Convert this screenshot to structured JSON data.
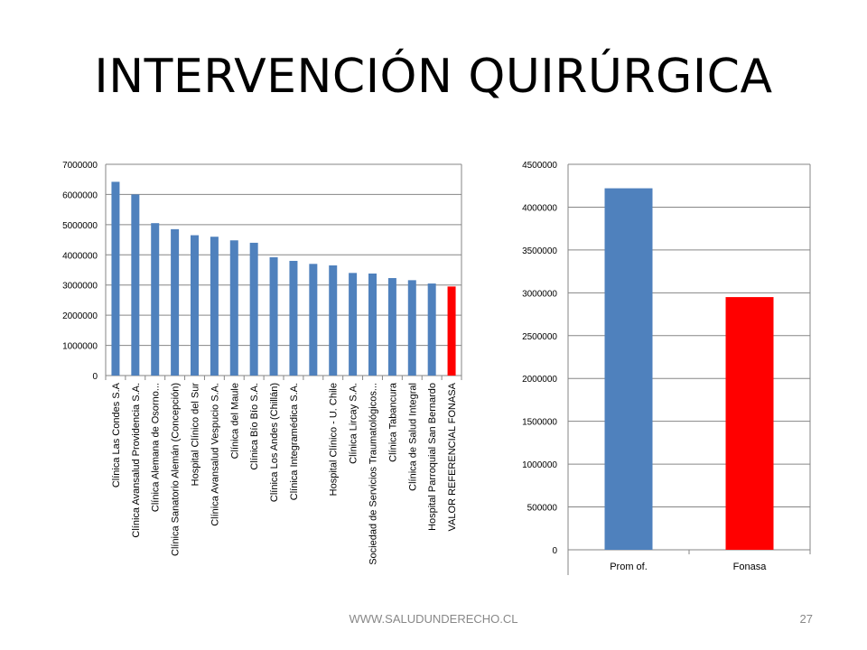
{
  "slide": {
    "title": "INTERVENCIÓN QUIRÚRGICA",
    "footer": "WWW.SALUDUNDERECHO.CL",
    "page_number": "27"
  },
  "chart_data": [
    {
      "type": "bar",
      "categories": [
        "Clínica Las Condes S.A",
        "Clínica Avansalud Providencia S.A.",
        "Clínica Alemana de Osorno...",
        "Clínica Sanatorio Alemán (Concepción)",
        "Hospital Clínico del Sur",
        "Clínica Avansalud Vespucio S.A.",
        "Clínica del Maule",
        "Clínica Bío Bío S.A.",
        "Clínica Los Andes (Chillán)",
        "Clínica Integramédica S.A.",
        "",
        "Hospital Clínico - U. Chile",
        "Clínica Lircay S.A.",
        "Sociedad de Servicios Traumatológicos...",
        "Clínica Tabancura",
        "Clínica de Salud Integral",
        "Hospital Parroquial San Bernardo",
        "VALOR REFERENCIAL FONASA"
      ],
      "values": [
        6420000,
        6000000,
        5050000,
        4850000,
        4650000,
        4600000,
        4480000,
        4400000,
        3920000,
        3800000,
        3700000,
        3650000,
        3400000,
        3380000,
        3230000,
        3160000,
        3050000,
        2950000
      ],
      "colors": [
        "#4f81bd",
        "#4f81bd",
        "#4f81bd",
        "#4f81bd",
        "#4f81bd",
        "#4f81bd",
        "#4f81bd",
        "#4f81bd",
        "#4f81bd",
        "#4f81bd",
        "#4f81bd",
        "#4f81bd",
        "#4f81bd",
        "#4f81bd",
        "#4f81bd",
        "#4f81bd",
        "#4f81bd",
        "#ff0000"
      ],
      "ylim": [
        0,
        7000000
      ],
      "yticks": [
        "0",
        "1000000",
        "2000000",
        "3000000",
        "4000000",
        "5000000",
        "6000000",
        "7000000"
      ],
      "grid": true
    },
    {
      "type": "bar",
      "categories": [
        "Prom of.",
        "Fonasa"
      ],
      "values": [
        4220000,
        2950000
      ],
      "colors": [
        "#4f81bd",
        "#ff0000"
      ],
      "ylim": [
        0,
        4500000
      ],
      "yticks": [
        "0",
        "500000",
        "1000000",
        "1500000",
        "2000000",
        "2500000",
        "3000000",
        "3500000",
        "4000000",
        "4500000"
      ],
      "grid": true
    }
  ]
}
